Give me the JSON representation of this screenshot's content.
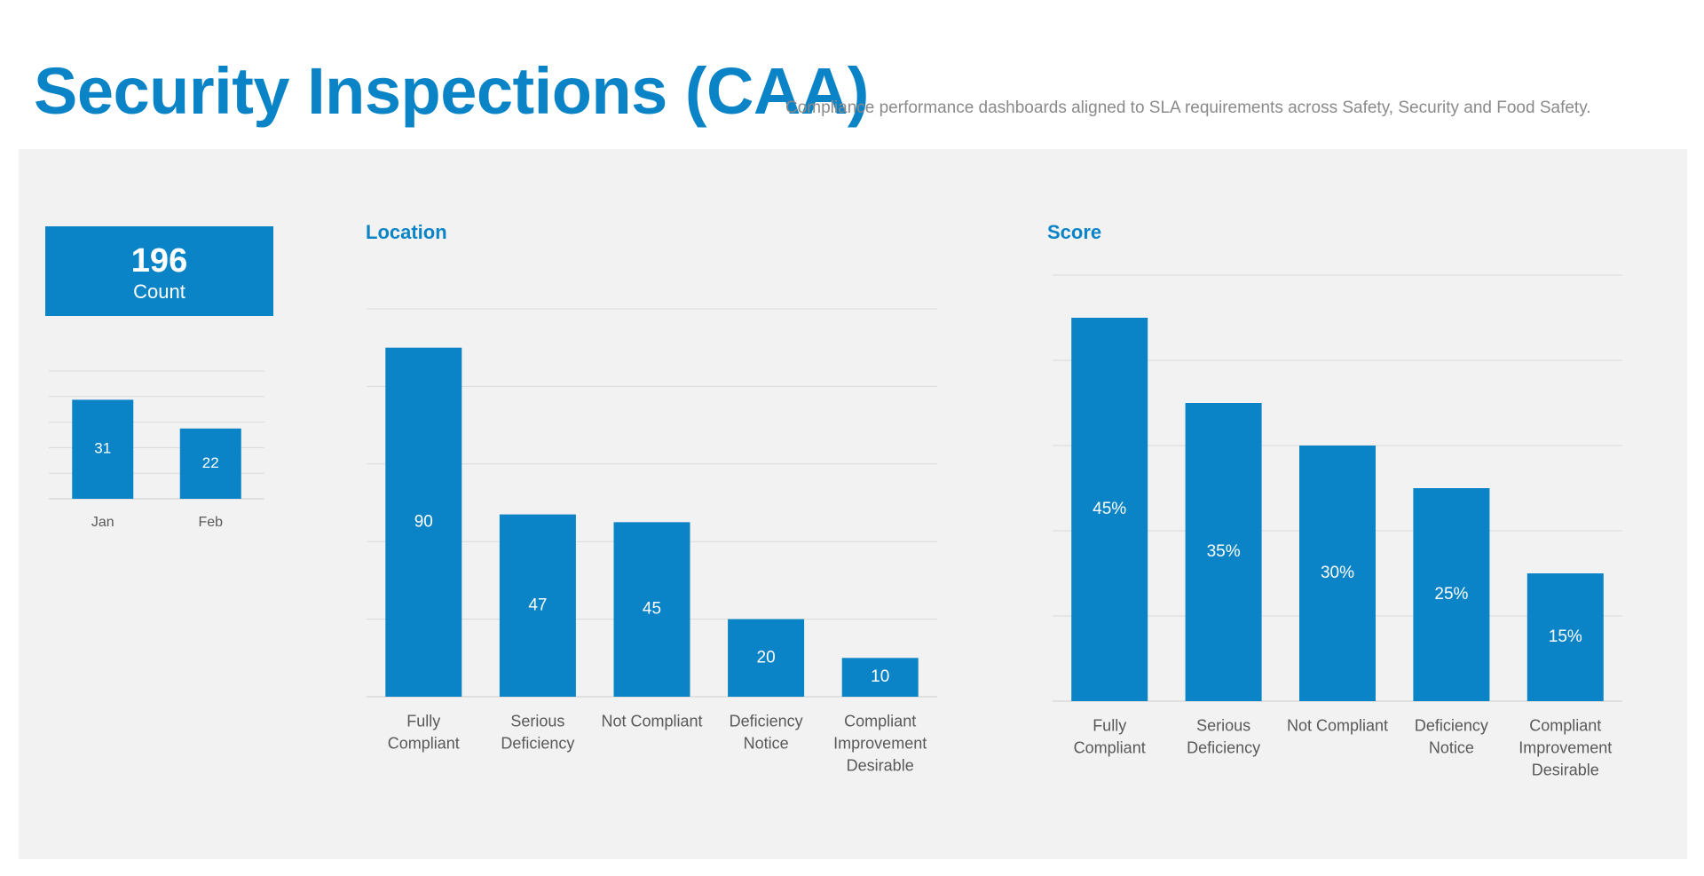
{
  "header": {
    "title": "Security Inspections (CAA)",
    "subtitle": "Compliance performance dashboards aligned to SLA requirements across Safety, Security and Food Safety."
  },
  "kpi": {
    "value": "196",
    "label": "Count"
  },
  "colors": {
    "accent": "#0a84c6",
    "panel": "#f2f2f2",
    "grid": "#d9d9d9",
    "tick_text": "#595959"
  },
  "chart_data": [
    {
      "id": "monthly",
      "type": "bar",
      "title": "",
      "categories": [
        "Jan",
        "Feb"
      ],
      "values": [
        31,
        22
      ],
      "labels": [
        "31",
        "22"
      ],
      "ylim": [
        0,
        40
      ],
      "grid_step": 8
    },
    {
      "id": "location",
      "type": "bar",
      "title": "Location",
      "categories": [
        [
          "Fully",
          "Compliant"
        ],
        [
          "Serious",
          "Deficiency"
        ],
        [
          "Not Compliant"
        ],
        [
          "Deficiency",
          "Notice"
        ],
        [
          "Compliant",
          "Improvement",
          "Desirable"
        ]
      ],
      "values": [
        90,
        47,
        45,
        20,
        10
      ],
      "labels": [
        "90",
        "47",
        "45",
        "20",
        "10"
      ],
      "ylim": [
        0,
        100
      ],
      "grid_step": 20
    },
    {
      "id": "score",
      "type": "bar",
      "title": "Score",
      "categories": [
        [
          "Fully",
          "Compliant"
        ],
        [
          "Serious",
          "Deficiency"
        ],
        [
          "Not Compliant"
        ],
        [
          "Deficiency",
          "Notice"
        ],
        [
          "Compliant",
          "Improvement",
          "Desirable"
        ]
      ],
      "values": [
        45,
        35,
        30,
        25,
        15
      ],
      "labels": [
        "45%",
        "35%",
        "30%",
        "25%",
        "15%"
      ],
      "ylim": [
        0,
        50
      ],
      "grid_step": 10
    }
  ]
}
